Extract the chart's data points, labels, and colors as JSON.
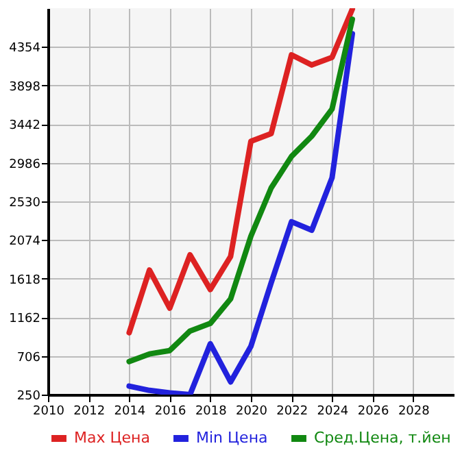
{
  "chart_data": {
    "type": "line",
    "x": [
      2014,
      2015,
      2016,
      2017,
      2018,
      2019,
      2020,
      2021,
      2022,
      2023,
      2024,
      2025
    ],
    "series": [
      {
        "name": "Max Цена",
        "color": "#dd2222",
        "values": [
          980,
          1720,
          1270,
          1900,
          1490,
          1880,
          3240,
          3330,
          4260,
          4140,
          4230,
          4800
        ]
      },
      {
        "name": "Min Цена",
        "color": "#2222dd",
        "values": [
          350,
          300,
          270,
          250,
          850,
          400,
          820,
          1570,
          2290,
          2190,
          2810,
          4510
        ]
      },
      {
        "name": "Сред.Цена, т.йен",
        "color": "#118811",
        "values": [
          640,
          730,
          770,
          1000,
          1090,
          1380,
          2120,
          2690,
          3060,
          3300,
          3620,
          4680
        ]
      }
    ],
    "xlim": [
      2010,
      2030
    ],
    "xticks": [
      2010,
      2012,
      2014,
      2016,
      2018,
      2020,
      2022,
      2024,
      2026,
      2028
    ],
    "ylim": [
      250,
      4810
    ],
    "yticks": [
      250,
      706,
      1162,
      1618,
      2074,
      2530,
      2986,
      3442,
      3898,
      4354
    ],
    "grid": true,
    "legend": "bottom",
    "marker": "none",
    "line_style": "solid"
  }
}
